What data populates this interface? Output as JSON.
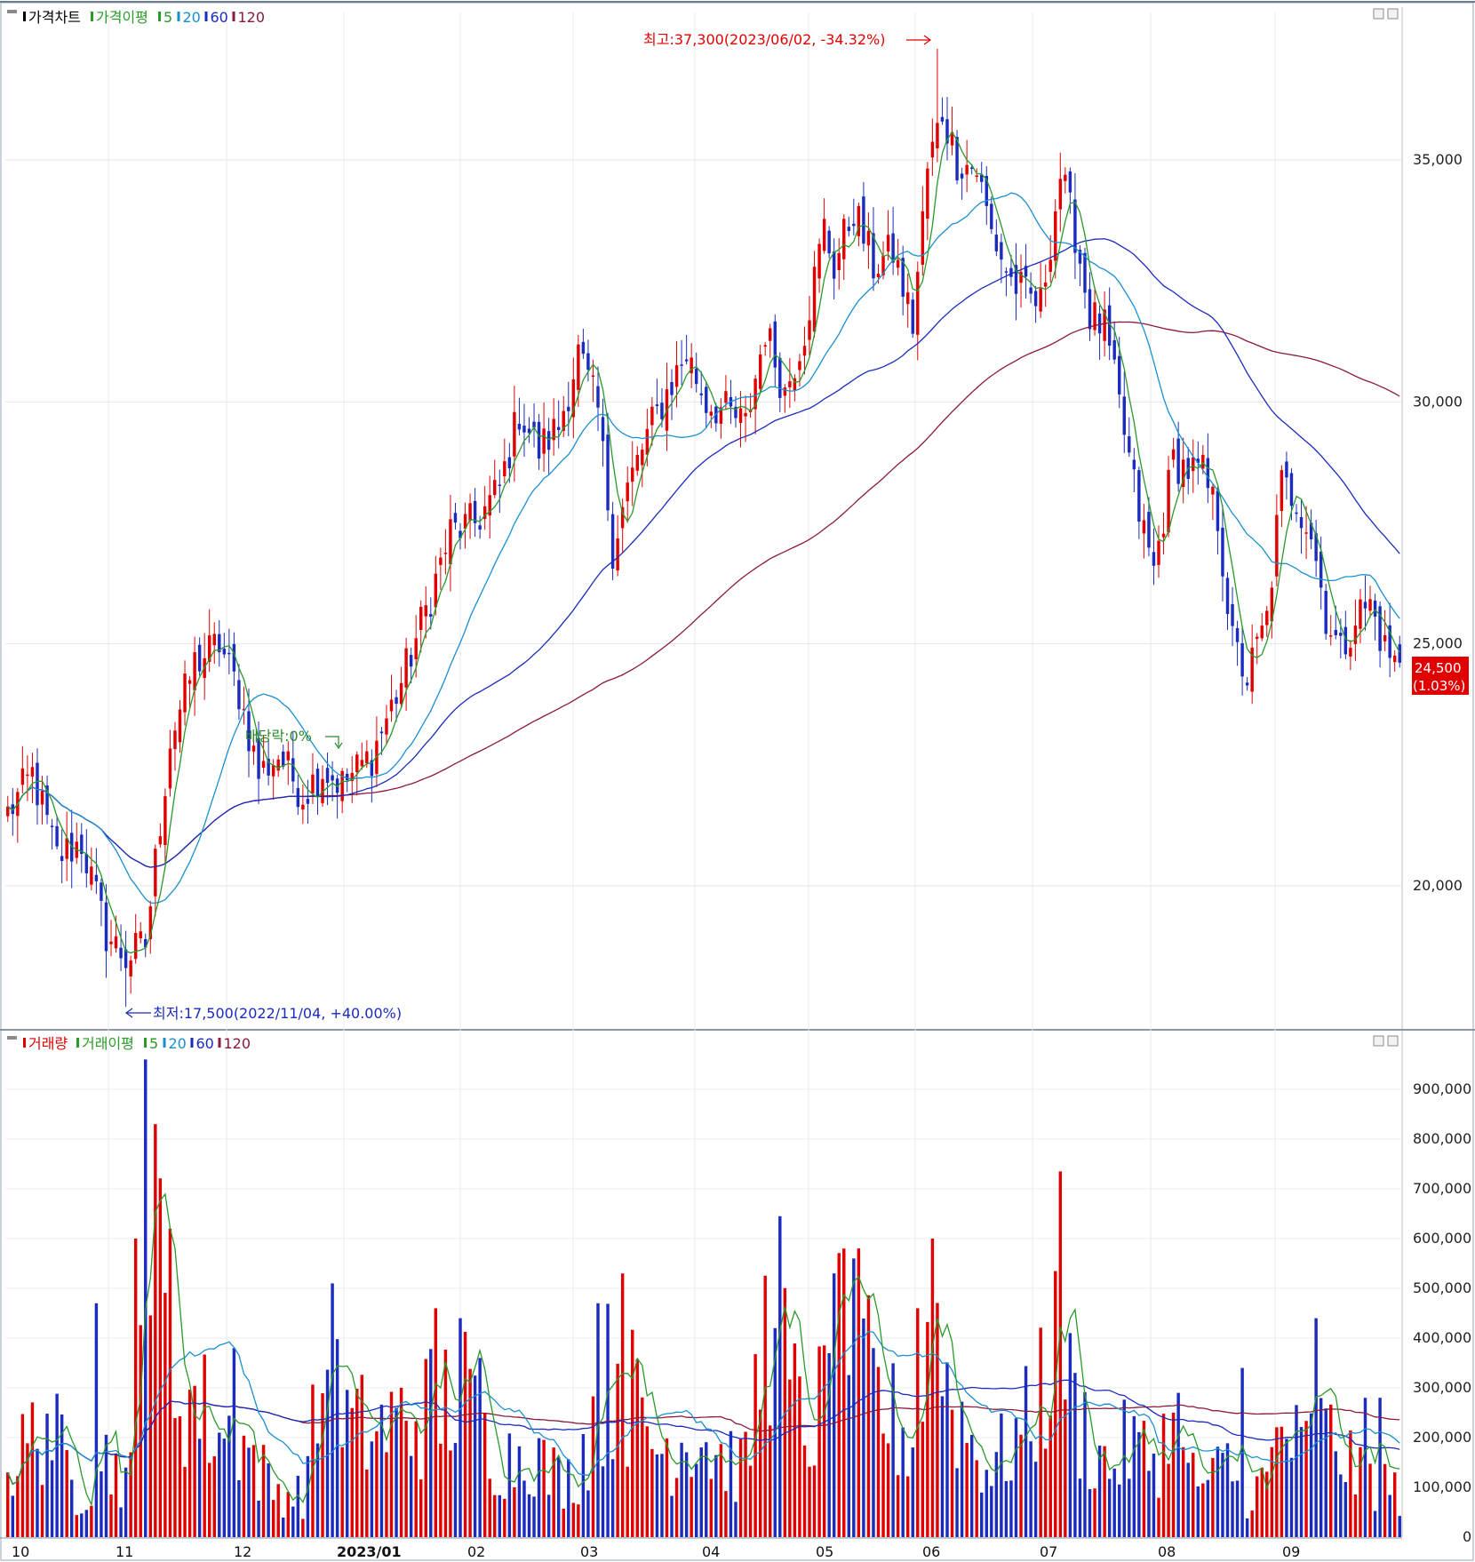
{
  "price_panel": {
    "legend": [
      {
        "label": "가격차트",
        "color": "#000000"
      },
      {
        "label": "가격이평",
        "color": "#2a9a2a"
      },
      {
        "label": "5",
        "color": "#2a9a2a"
      },
      {
        "label": "20",
        "color": "#1a8fd0"
      },
      {
        "label": "60",
        "color": "#1a2bbd"
      },
      {
        "label": "120",
        "color": "#8b1a3a"
      }
    ],
    "high_annotation": "최고:37,300(2023/06/02, -34.32%)",
    "low_annotation": "최저:17,500(2022/11/04, +40.00%)",
    "dividend_annotation": "배당락:0%",
    "current_price": "24,500",
    "current_change": "(1.03%)",
    "y_ticks": [
      "35,000",
      "30,000",
      "25,000",
      "20,000"
    ]
  },
  "volume_panel": {
    "legend": [
      {
        "label": "거래량",
        "color": "#e00000"
      },
      {
        "label": "거래이평",
        "color": "#2a9a2a"
      },
      {
        "label": "5",
        "color": "#2a9a2a"
      },
      {
        "label": "20",
        "color": "#1a8fd0"
      },
      {
        "label": "60",
        "color": "#1a2bbd"
      },
      {
        "label": "120",
        "color": "#8b1a3a"
      }
    ],
    "y_ticks": [
      "900,000",
      "800,000",
      "700,000",
      "600,000",
      "500,000",
      "400,000",
      "300,000",
      "200,000",
      "100,000",
      "0"
    ]
  },
  "x_axis_labels": [
    "10",
    "11",
    "12",
    "2023/01",
    "02",
    "03",
    "04",
    "05",
    "06",
    "07",
    "08",
    "09"
  ],
  "chart_data": {
    "type": "candlestick",
    "up_color": "#e00000",
    "down_color": "#1a2bbd",
    "price_ylim": [
      17000,
      38000
    ],
    "volume_ylim": [
      0,
      980000
    ],
    "months": [
      "10",
      "11",
      "12",
      "2023/01",
      "02",
      "03",
      "04",
      "05",
      "06",
      "07",
      "08",
      "09"
    ],
    "close_anchors": [
      [
        0,
        21500
      ],
      [
        5,
        22300
      ],
      [
        10,
        20600
      ],
      [
        15,
        20900
      ],
      [
        20,
        19000
      ],
      [
        24,
        18500
      ],
      [
        28,
        18800
      ],
      [
        33,
        23000
      ],
      [
        38,
        24600
      ],
      [
        43,
        25000
      ],
      [
        47,
        24000
      ],
      [
        51,
        22300
      ],
      [
        55,
        22700
      ],
      [
        60,
        21900
      ],
      [
        64,
        22400
      ],
      [
        68,
        22100
      ],
      [
        74,
        22700
      ],
      [
        80,
        24200
      ],
      [
        86,
        26000
      ],
      [
        90,
        27300
      ],
      [
        95,
        27500
      ],
      [
        100,
        28200
      ],
      [
        104,
        29800
      ],
      [
        108,
        29000
      ],
      [
        112,
        29500
      ],
      [
        116,
        31000
      ],
      [
        120,
        29800
      ],
      [
        123,
        27000
      ],
      [
        126,
        28200
      ],
      [
        130,
        29300
      ],
      [
        134,
        30200
      ],
      [
        138,
        31000
      ],
      [
        142,
        30000
      ],
      [
        146,
        29800
      ],
      [
        150,
        29500
      ],
      [
        154,
        31500
      ],
      [
        158,
        30200
      ],
      [
        162,
        31500
      ],
      [
        166,
        33600
      ],
      [
        168,
        32800
      ],
      [
        172,
        34000
      ],
      [
        176,
        32800
      ],
      [
        180,
        33100
      ],
      [
        184,
        31600
      ],
      [
        187,
        34800
      ],
      [
        190,
        36000
      ],
      [
        193,
        35000
      ],
      [
        197,
        34800
      ],
      [
        200,
        33500
      ],
      [
        204,
        32500
      ],
      [
        207,
        32200
      ],
      [
        210,
        32000
      ],
      [
        214,
        34700
      ],
      [
        217,
        33500
      ],
      [
        220,
        31800
      ],
      [
        223,
        31500
      ],
      [
        226,
        29900
      ],
      [
        230,
        27700
      ],
      [
        233,
        26500
      ],
      [
        237,
        28800
      ],
      [
        240,
        28600
      ],
      [
        243,
        28500
      ],
      [
        246,
        27600
      ],
      [
        249,
        25000
      ],
      [
        252,
        24300
      ],
      [
        256,
        25500
      ],
      [
        259,
        28300
      ],
      [
        262,
        28000
      ],
      [
        265,
        27300
      ],
      [
        268,
        25600
      ],
      [
        271,
        24800
      ],
      [
        274,
        25600
      ],
      [
        277,
        25800
      ],
      [
        280,
        24900
      ],
      [
        283,
        24500
      ]
    ],
    "volume_anchors": [
      [
        0,
        120000
      ],
      [
        8,
        230000
      ],
      [
        14,
        80000
      ],
      [
        20,
        150000
      ],
      [
        25,
        110000
      ],
      [
        29,
        600000
      ],
      [
        33,
        310000
      ],
      [
        38,
        260000
      ],
      [
        43,
        200000
      ],
      [
        48,
        180000
      ],
      [
        54,
        90000
      ],
      [
        60,
        80000
      ],
      [
        64,
        300000
      ],
      [
        70,
        210000
      ],
      [
        75,
        200000
      ],
      [
        82,
        230000
      ],
      [
        88,
        250000
      ],
      [
        92,
        290000
      ],
      [
        97,
        180000
      ],
      [
        102,
        150000
      ],
      [
        106,
        180000
      ],
      [
        110,
        120000
      ],
      [
        115,
        110000
      ],
      [
        119,
        230000
      ],
      [
        124,
        340000
      ],
      [
        128,
        240000
      ],
      [
        132,
        170000
      ],
      [
        136,
        180000
      ],
      [
        140,
        210000
      ],
      [
        144,
        160000
      ],
      [
        150,
        130000
      ],
      [
        154,
        380000
      ],
      [
        158,
        320000
      ],
      [
        162,
        190000
      ],
      [
        167,
        280000
      ],
      [
        171,
        420000
      ],
      [
        175,
        300000
      ],
      [
        179,
        230000
      ],
      [
        184,
        180000
      ],
      [
        188,
        400000
      ],
      [
        192,
        270000
      ],
      [
        196,
        180000
      ],
      [
        200,
        130000
      ],
      [
        204,
        180000
      ],
      [
        208,
        220000
      ],
      [
        212,
        360000
      ],
      [
        216,
        270000
      ],
      [
        220,
        180000
      ],
      [
        224,
        130000
      ],
      [
        228,
        180000
      ],
      [
        232,
        150000
      ],
      [
        236,
        200000
      ],
      [
        240,
        120000
      ],
      [
        244,
        100000
      ],
      [
        248,
        140000
      ],
      [
        252,
        80000
      ],
      [
        256,
        110000
      ],
      [
        259,
        210000
      ],
      [
        263,
        160000
      ],
      [
        267,
        200000
      ],
      [
        271,
        170000
      ],
      [
        275,
        110000
      ],
      [
        279,
        110000
      ],
      [
        283,
        80000
      ]
    ],
    "volume_spikes": [
      [
        28,
        960000
      ],
      [
        30,
        830000
      ],
      [
        26,
        600000
      ],
      [
        33,
        620000
      ],
      [
        18,
        470000
      ],
      [
        46,
        380000
      ],
      [
        66,
        510000
      ],
      [
        87,
        460000
      ],
      [
        92,
        440000
      ],
      [
        96,
        360000
      ],
      [
        125,
        530000
      ],
      [
        120,
        470000
      ],
      [
        157,
        645000
      ],
      [
        156,
        420000
      ],
      [
        170,
        580000
      ],
      [
        172,
        560000
      ],
      [
        168,
        530000
      ],
      [
        188,
        600000
      ],
      [
        185,
        460000
      ],
      [
        214,
        735000
      ],
      [
        217,
        330000
      ],
      [
        238,
        290000
      ],
      [
        251,
        340000
      ],
      [
        266,
        440000
      ],
      [
        276,
        280000
      ],
      [
        279,
        280000
      ]
    ]
  }
}
